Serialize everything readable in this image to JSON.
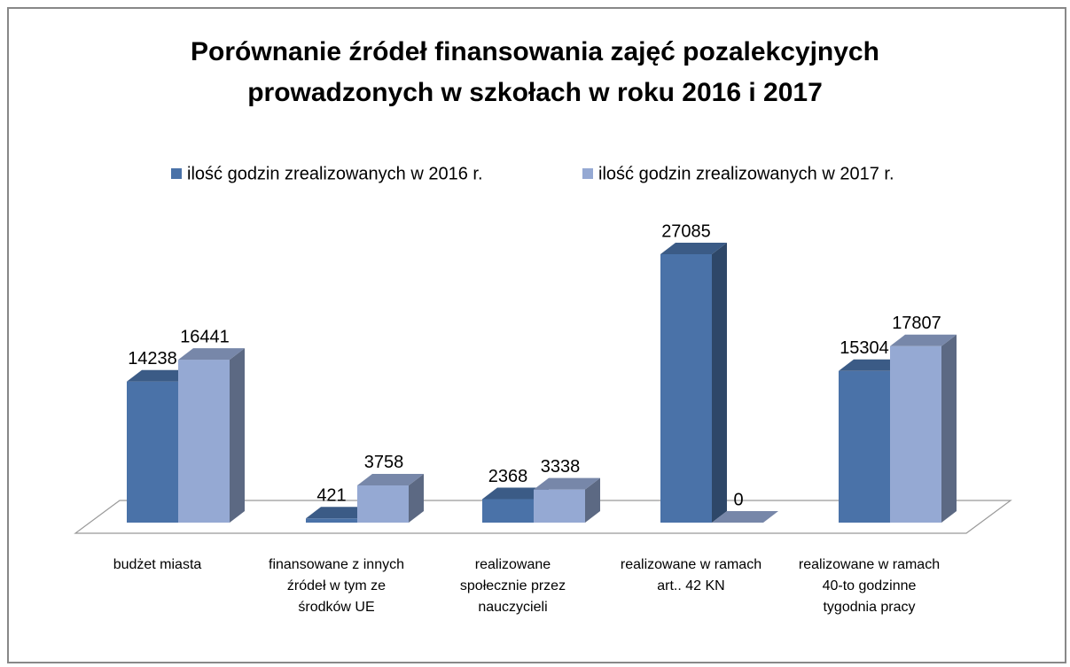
{
  "chart_data": {
    "type": "bar3d",
    "title": "Porównanie źródeł finansowania zajęć pozalekcyjnych prowadzonych w szkołach w roku 2016 i 2017",
    "categories": [
      "budżet miasta",
      "finansowane z innych źródeł w tym ze środków UE",
      "realizowane społecznie przez nauczycieli",
      "realizowane w ramach art.. 42 KN",
      "realizowane w ramach 40-to godzinne tygodnia pracy"
    ],
    "series": [
      {
        "name": "ilość godzin zrealizowanych w 2016 r.",
        "color": "#4a72a8",
        "values": [
          14238,
          421,
          2368,
          27085,
          15304
        ]
      },
      {
        "name": "ilość godzin zrealizowanych w 2017 r.",
        "color": "#95a9d3",
        "values": [
          16441,
          3758,
          3338,
          0,
          17807
        ]
      }
    ],
    "legend": "top"
  }
}
